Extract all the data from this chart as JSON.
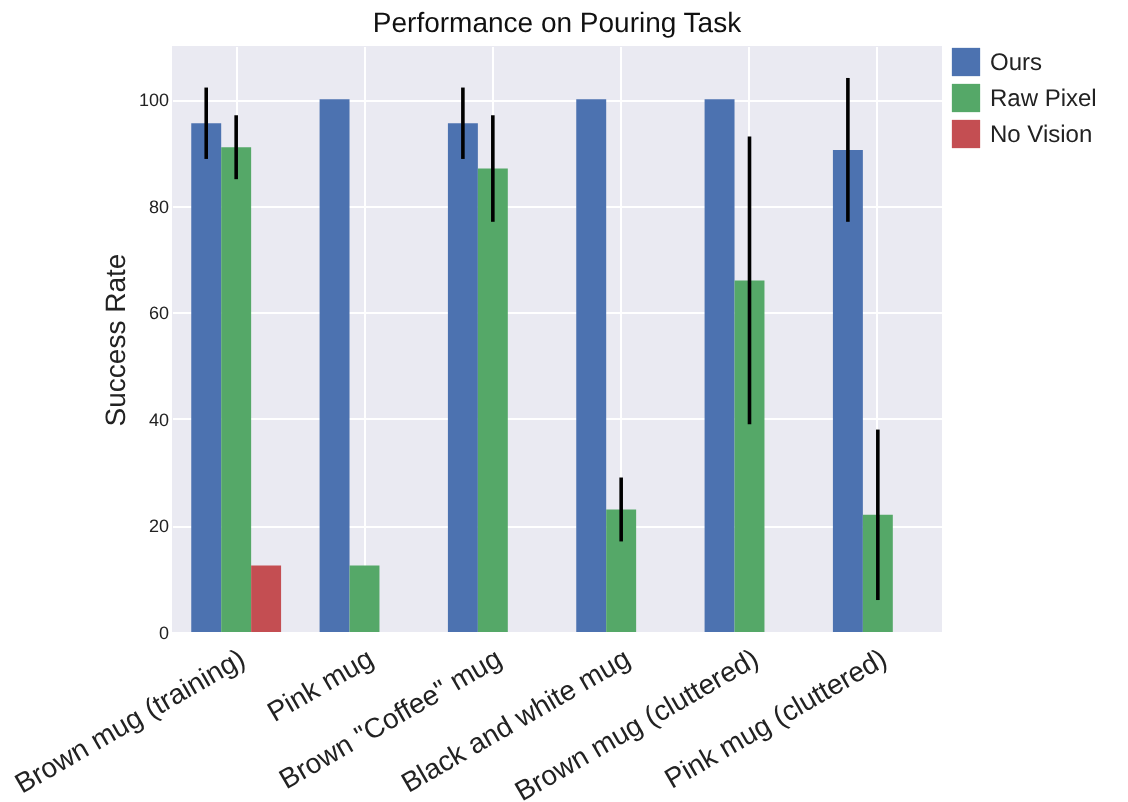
{
  "chart_data": {
    "type": "bar",
    "title": "Performance on Pouring Task",
    "ylabel": "Success Rate",
    "categories": [
      "Brown mug (training)",
      "Pink mug",
      "Brown \"Coffee\" mug",
      "Black and white mug",
      "Brown mug (cluttered)",
      "Pink mug (cluttered)"
    ],
    "series": [
      {
        "name": "Ours",
        "color": "#4c72b0",
        "values": [
          95.5,
          100,
          95.5,
          100,
          100,
          90.5
        ],
        "errors": [
          6.7,
          null,
          6.7,
          null,
          null,
          13.5
        ]
      },
      {
        "name": "Raw Pixel",
        "color": "#55a868",
        "values": [
          91,
          12.5,
          87,
          23,
          66,
          22
        ],
        "errors": [
          6,
          null,
          10,
          6,
          27,
          16
        ]
      },
      {
        "name": "No Vision",
        "color": "#c44e52",
        "values": [
          12.5,
          null,
          null,
          null,
          null,
          null
        ]
      }
    ],
    "ylim": [
      0,
      110
    ],
    "yticks": [
      0,
      20,
      40,
      60,
      80,
      100
    ],
    "grid": true,
    "legend": "top right"
  }
}
